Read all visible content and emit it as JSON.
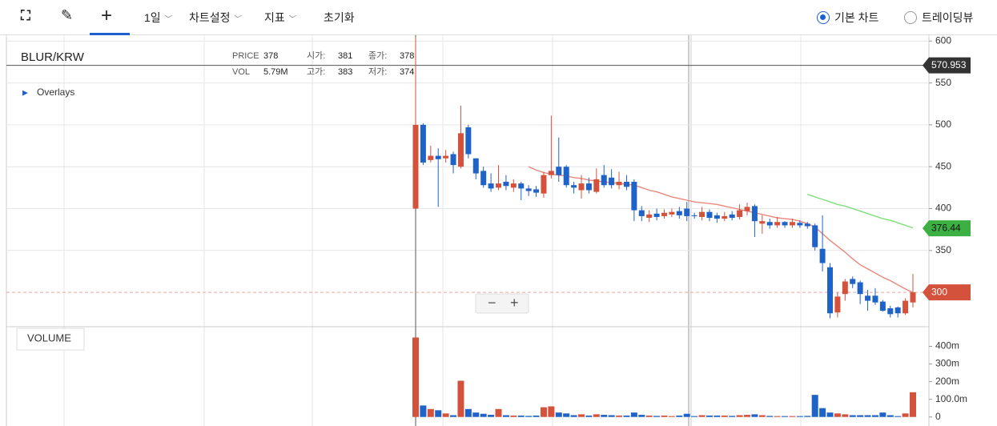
{
  "toolbar": {
    "period": "1일",
    "settings": "차트설정",
    "indicators": "지표",
    "reset": "초기화",
    "basic_chart": "기본 차트",
    "tradingview": "트레이딩뷰"
  },
  "header": {
    "symbol": "BLUR/KRW",
    "overlays": "Overlays",
    "volume_title": "VOLUME",
    "info": [
      [
        "PRICE",
        "378",
        "시가:",
        "381",
        "종가:",
        "378"
      ],
      [
        "VOL",
        "5.79M",
        "고가:",
        "383",
        "저가:",
        "374"
      ]
    ]
  },
  "chart_data": {
    "type": "candlestick",
    "up_color": "#d4513c",
    "down_color": "#1f62c8",
    "open": [
      400,
      500,
      458,
      463,
      460,
      465,
      450,
      497,
      460,
      445,
      430,
      425,
      432,
      425,
      430,
      424,
      423,
      418,
      440,
      450,
      450,
      428,
      422,
      430,
      420,
      440,
      437,
      428,
      432,
      432,
      398,
      389,
      394,
      391,
      393,
      397,
      400,
      392,
      390,
      396,
      392,
      388,
      393,
      390,
      397,
      403,
      382,
      384,
      380,
      384,
      380,
      383,
      382,
      380,
      352,
      330,
      276,
      298,
      316,
      312,
      296,
      296,
      289,
      281,
      282,
      275,
      288
    ],
    "high": [
      605,
      502,
      475,
      472,
      470,
      468,
      523,
      500,
      460,
      450,
      442,
      452,
      440,
      435,
      432,
      428,
      427,
      444,
      511,
      485,
      452,
      432,
      440,
      437,
      448,
      452,
      447,
      444,
      440,
      435,
      403,
      398,
      400,
      399,
      400,
      402,
      408,
      395,
      402,
      399,
      395,
      396,
      397,
      405,
      407,
      405,
      392,
      388,
      390,
      385,
      388,
      386,
      384,
      382,
      392,
      335,
      300,
      316,
      319,
      314,
      303,
      305,
      291,
      284,
      283,
      293,
      322
    ],
    "low": [
      400,
      452,
      455,
      402,
      455,
      442,
      448,
      460,
      435,
      425,
      420,
      422,
      422,
      420,
      410,
      415,
      414,
      413,
      436,
      432,
      425,
      418,
      412,
      418,
      418,
      425,
      424,
      423,
      422,
      385,
      385,
      384,
      386,
      388,
      390,
      388,
      385,
      388,
      386,
      385,
      383,
      385,
      386,
      387,
      392,
      366,
      370,
      376,
      377,
      377,
      377,
      377,
      376,
      350,
      325,
      269,
      270,
      290,
      305,
      286,
      278,
      285,
      277,
      270,
      270,
      273,
      282
    ],
    "close": [
      500,
      455,
      463,
      459,
      463,
      452,
      490,
      465,
      442,
      428,
      424,
      430,
      427,
      430,
      424,
      421,
      419,
      440,
      445,
      440,
      428,
      425,
      430,
      422,
      435,
      428,
      428,
      432,
      426,
      398,
      391,
      393,
      390,
      395,
      396,
      392,
      391,
      391,
      396,
      389,
      388,
      391,
      389,
      398,
      402,
      385,
      385,
      380,
      384,
      380,
      384,
      380,
      379,
      354,
      335,
      275,
      295,
      313,
      310,
      298,
      290,
      288,
      278,
      274,
      275,
      290,
      300
    ],
    "volume": [
      450,
      65,
      45,
      38,
      20,
      10,
      205,
      45,
      25,
      18,
      12,
      45,
      10,
      8,
      8,
      6,
      8,
      55,
      60,
      25,
      20,
      10,
      15,
      8,
      15,
      12,
      10,
      8,
      8,
      25,
      12,
      8,
      6,
      8,
      5,
      8,
      18,
      5,
      10,
      8,
      8,
      8,
      6,
      10,
      12,
      15,
      10,
      6,
      5,
      5,
      5,
      5,
      6,
      125,
      50,
      25,
      20,
      15,
      10,
      10,
      10,
      10,
      25,
      10,
      5,
      20,
      140
    ],
    "lines": [
      {
        "color": "#e8877a",
        "values": [
          null,
          null,
          null,
          null,
          null,
          null,
          null,
          null,
          null,
          null,
          null,
          null,
          null,
          null,
          null,
          450,
          446,
          443,
          441,
          440,
          439,
          437,
          436,
          434,
          433,
          432,
          431,
          430,
          429,
          428,
          425,
          422,
          420,
          417,
          414,
          412,
          410,
          408,
          407,
          406,
          405,
          403,
          401,
          399,
          397,
          395,
          393,
          391,
          389,
          388,
          387,
          385,
          382,
          378,
          370,
          362,
          355,
          348,
          340,
          333,
          328,
          323,
          318,
          314,
          309,
          304,
          300
        ]
      },
      {
        "color": "#7ee07a",
        "values": [
          null,
          null,
          null,
          null,
          null,
          null,
          null,
          null,
          null,
          null,
          null,
          null,
          null,
          null,
          null,
          null,
          null,
          null,
          null,
          null,
          null,
          null,
          null,
          null,
          null,
          null,
          null,
          null,
          null,
          null,
          null,
          null,
          null,
          null,
          null,
          null,
          null,
          null,
          null,
          null,
          null,
          null,
          null,
          null,
          null,
          null,
          null,
          null,
          null,
          null,
          null,
          null,
          417,
          414,
          411,
          408,
          405,
          403,
          400,
          397,
          394,
          391,
          388,
          386,
          383,
          380,
          377
        ]
      }
    ],
    "ylim": [
      259,
      606
    ],
    "yticks": [
      350,
      400,
      450,
      500,
      550,
      600
    ],
    "volume_ylim": [
      -33,
      502
    ],
    "volume_yticks": [
      0,
      {
        "value": 100,
        "label": "100.0m"
      },
      {
        "value": 200,
        "label": "200m"
      },
      {
        "value": 300,
        "label": "300m"
      },
      {
        "value": 400,
        "label": "400m"
      }
    ],
    "markers": [
      {
        "value": 570.953,
        "color": "#333333"
      },
      {
        "value": 376.44,
        "color": "#3cb043"
      },
      {
        "value": 300,
        "color": "#d4513c"
      }
    ]
  }
}
